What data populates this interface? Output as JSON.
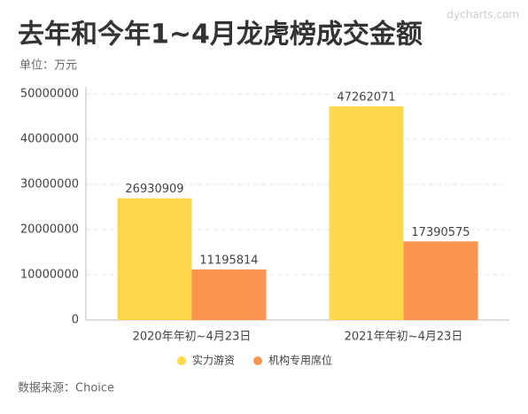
{
  "chart_data": {
    "type": "bar",
    "title": "去年和今年1~4月龙虎榜成交金额",
    "subtitle": "单位：万元",
    "source": "数据来源：Choice",
    "watermark": "dycharts.com",
    "categories": [
      "2020年年初~4月23日",
      "2021年年初~4月23日"
    ],
    "series": [
      {
        "name": "实力游资",
        "color": "#fdd84a",
        "values": [
          26930909,
          47262071
        ]
      },
      {
        "name": "机构专用席位",
        "color": "#fa9550",
        "values": [
          11195814,
          17390575
        ]
      }
    ],
    "ylim": [
      0,
      50000000
    ],
    "yticks": [
      0,
      10000000,
      20000000,
      30000000,
      40000000,
      50000000
    ],
    "grid": true,
    "legend": "bottom"
  }
}
